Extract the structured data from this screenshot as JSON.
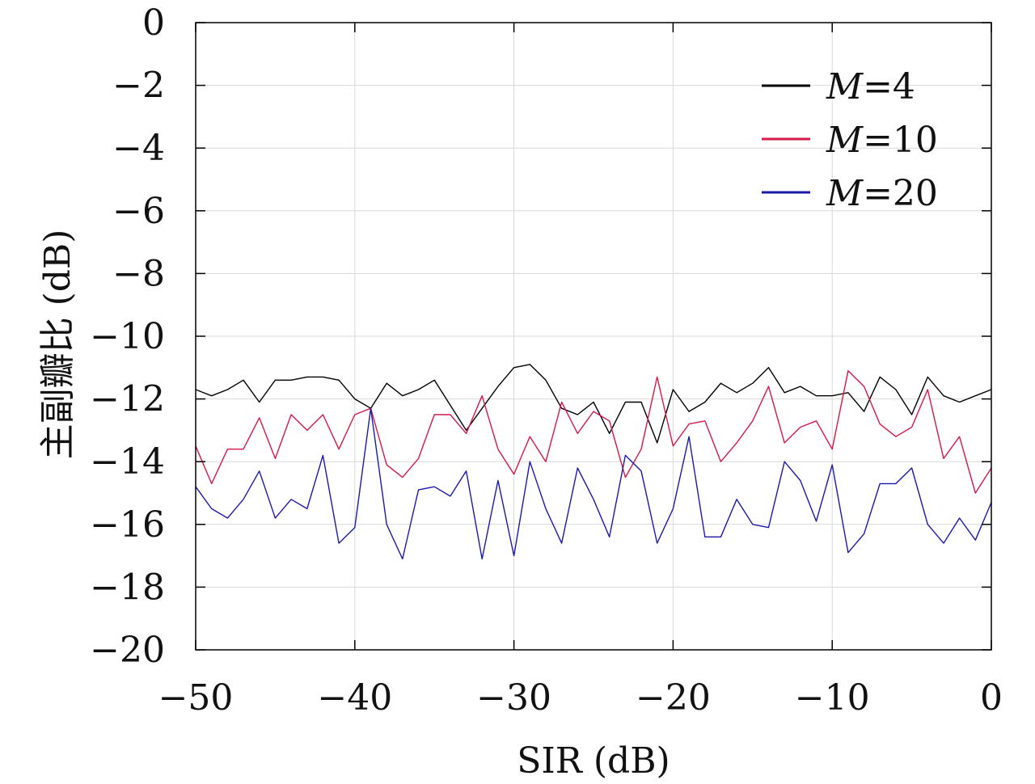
{
  "chart_data": {
    "type": "line",
    "xlabel": "SIR (dB)",
    "ylabel": "主副瓣比 (dB)",
    "xlim": [
      -50,
      0
    ],
    "ylim": [
      -20,
      0
    ],
    "xticks": [
      -50,
      -40,
      -30,
      -20,
      -10,
      0
    ],
    "yticks": [
      0,
      -2,
      -4,
      -6,
      -8,
      -10,
      -12,
      -14,
      -16,
      -18,
      -20
    ],
    "xtick_labels": [
      "−50",
      "−40",
      "−30",
      "−20",
      "−10",
      "0"
    ],
    "ytick_labels": [
      "0",
      "−2",
      "−4",
      "−6",
      "−8",
      "−10",
      "−12",
      "−14",
      "−16",
      "−18",
      "−20"
    ],
    "grid": true,
    "legend_position": "top-right",
    "x": [
      -50,
      -49,
      -48,
      -47,
      -46,
      -45,
      -44,
      -43,
      -42,
      -41,
      -40,
      -39,
      -38,
      -37,
      -36,
      -35,
      -34,
      -33,
      -32,
      -31,
      -30,
      -29,
      -28,
      -27,
      -26,
      -25,
      -24,
      -23,
      -22,
      -21,
      -20,
      -19,
      -18,
      -17,
      -16,
      -15,
      -14,
      -13,
      -12,
      -11,
      -10,
      -9,
      -8,
      -7,
      -6,
      -5,
      -4,
      -3,
      -2,
      -1,
      0
    ],
    "series": [
      {
        "name": "M=4",
        "legend_var": "M",
        "legend_value": "=4",
        "color": "#000000",
        "values": [
          -11.7,
          -11.9,
          -11.7,
          -11.4,
          -12.1,
          -11.4,
          -11.4,
          -11.3,
          -11.3,
          -11.4,
          -12.0,
          -12.3,
          -11.5,
          -11.9,
          -11.7,
          -11.4,
          -12.2,
          -13.0,
          -12.3,
          -11.6,
          -11.0,
          -10.9,
          -11.4,
          -12.3,
          -12.5,
          -12.1,
          -13.1,
          -12.1,
          -12.1,
          -13.4,
          -11.7,
          -12.4,
          -12.1,
          -11.5,
          -11.8,
          -11.5,
          -11.0,
          -11.8,
          -11.6,
          -11.9,
          -11.9,
          -11.8,
          -12.4,
          -11.3,
          -11.7,
          -12.5,
          -11.3,
          -11.9,
          -12.1,
          -11.9,
          -11.7
        ]
      },
      {
        "name": "M=10",
        "legend_var": "M",
        "legend_value": "=10",
        "color": "#d4184a",
        "values": [
          -13.5,
          -14.7,
          -13.6,
          -13.6,
          -12.6,
          -13.9,
          -12.5,
          -13.0,
          -12.5,
          -13.6,
          -12.5,
          -12.3,
          -14.1,
          -14.5,
          -13.9,
          -12.5,
          -12.5,
          -13.1,
          -11.9,
          -13.6,
          -14.4,
          -13.2,
          -14.0,
          -12.1,
          -13.1,
          -12.4,
          -12.7,
          -14.5,
          -13.6,
          -11.3,
          -13.5,
          -12.8,
          -12.7,
          -14.0,
          -13.4,
          -12.7,
          -11.6,
          -13.4,
          -12.9,
          -12.7,
          -13.6,
          -11.1,
          -11.6,
          -12.8,
          -13.2,
          -12.9,
          -11.7,
          -13.9,
          -13.2,
          -15.0,
          -14.2
        ]
      },
      {
        "name": "M=20",
        "legend_var": "M",
        "legend_value": "=20",
        "color": "#1a1aa8",
        "values": [
          -14.8,
          -15.5,
          -15.8,
          -15.2,
          -14.3,
          -15.8,
          -15.2,
          -15.5,
          -13.8,
          -16.6,
          -16.1,
          -12.3,
          -16.0,
          -17.1,
          -14.9,
          -14.8,
          -15.1,
          -14.3,
          -17.1,
          -14.6,
          -17.0,
          -14.0,
          -15.5,
          -16.6,
          -14.2,
          -15.2,
          -16.4,
          -13.8,
          -14.3,
          -16.6,
          -15.5,
          -13.2,
          -16.4,
          -16.4,
          -15.2,
          -16.0,
          -16.1,
          -14.0,
          -14.6,
          -15.9,
          -14.1,
          -16.9,
          -16.3,
          -14.7,
          -14.7,
          -14.2,
          -16.0,
          -16.6,
          -15.8,
          -16.5,
          -15.3
        ]
      }
    ]
  }
}
